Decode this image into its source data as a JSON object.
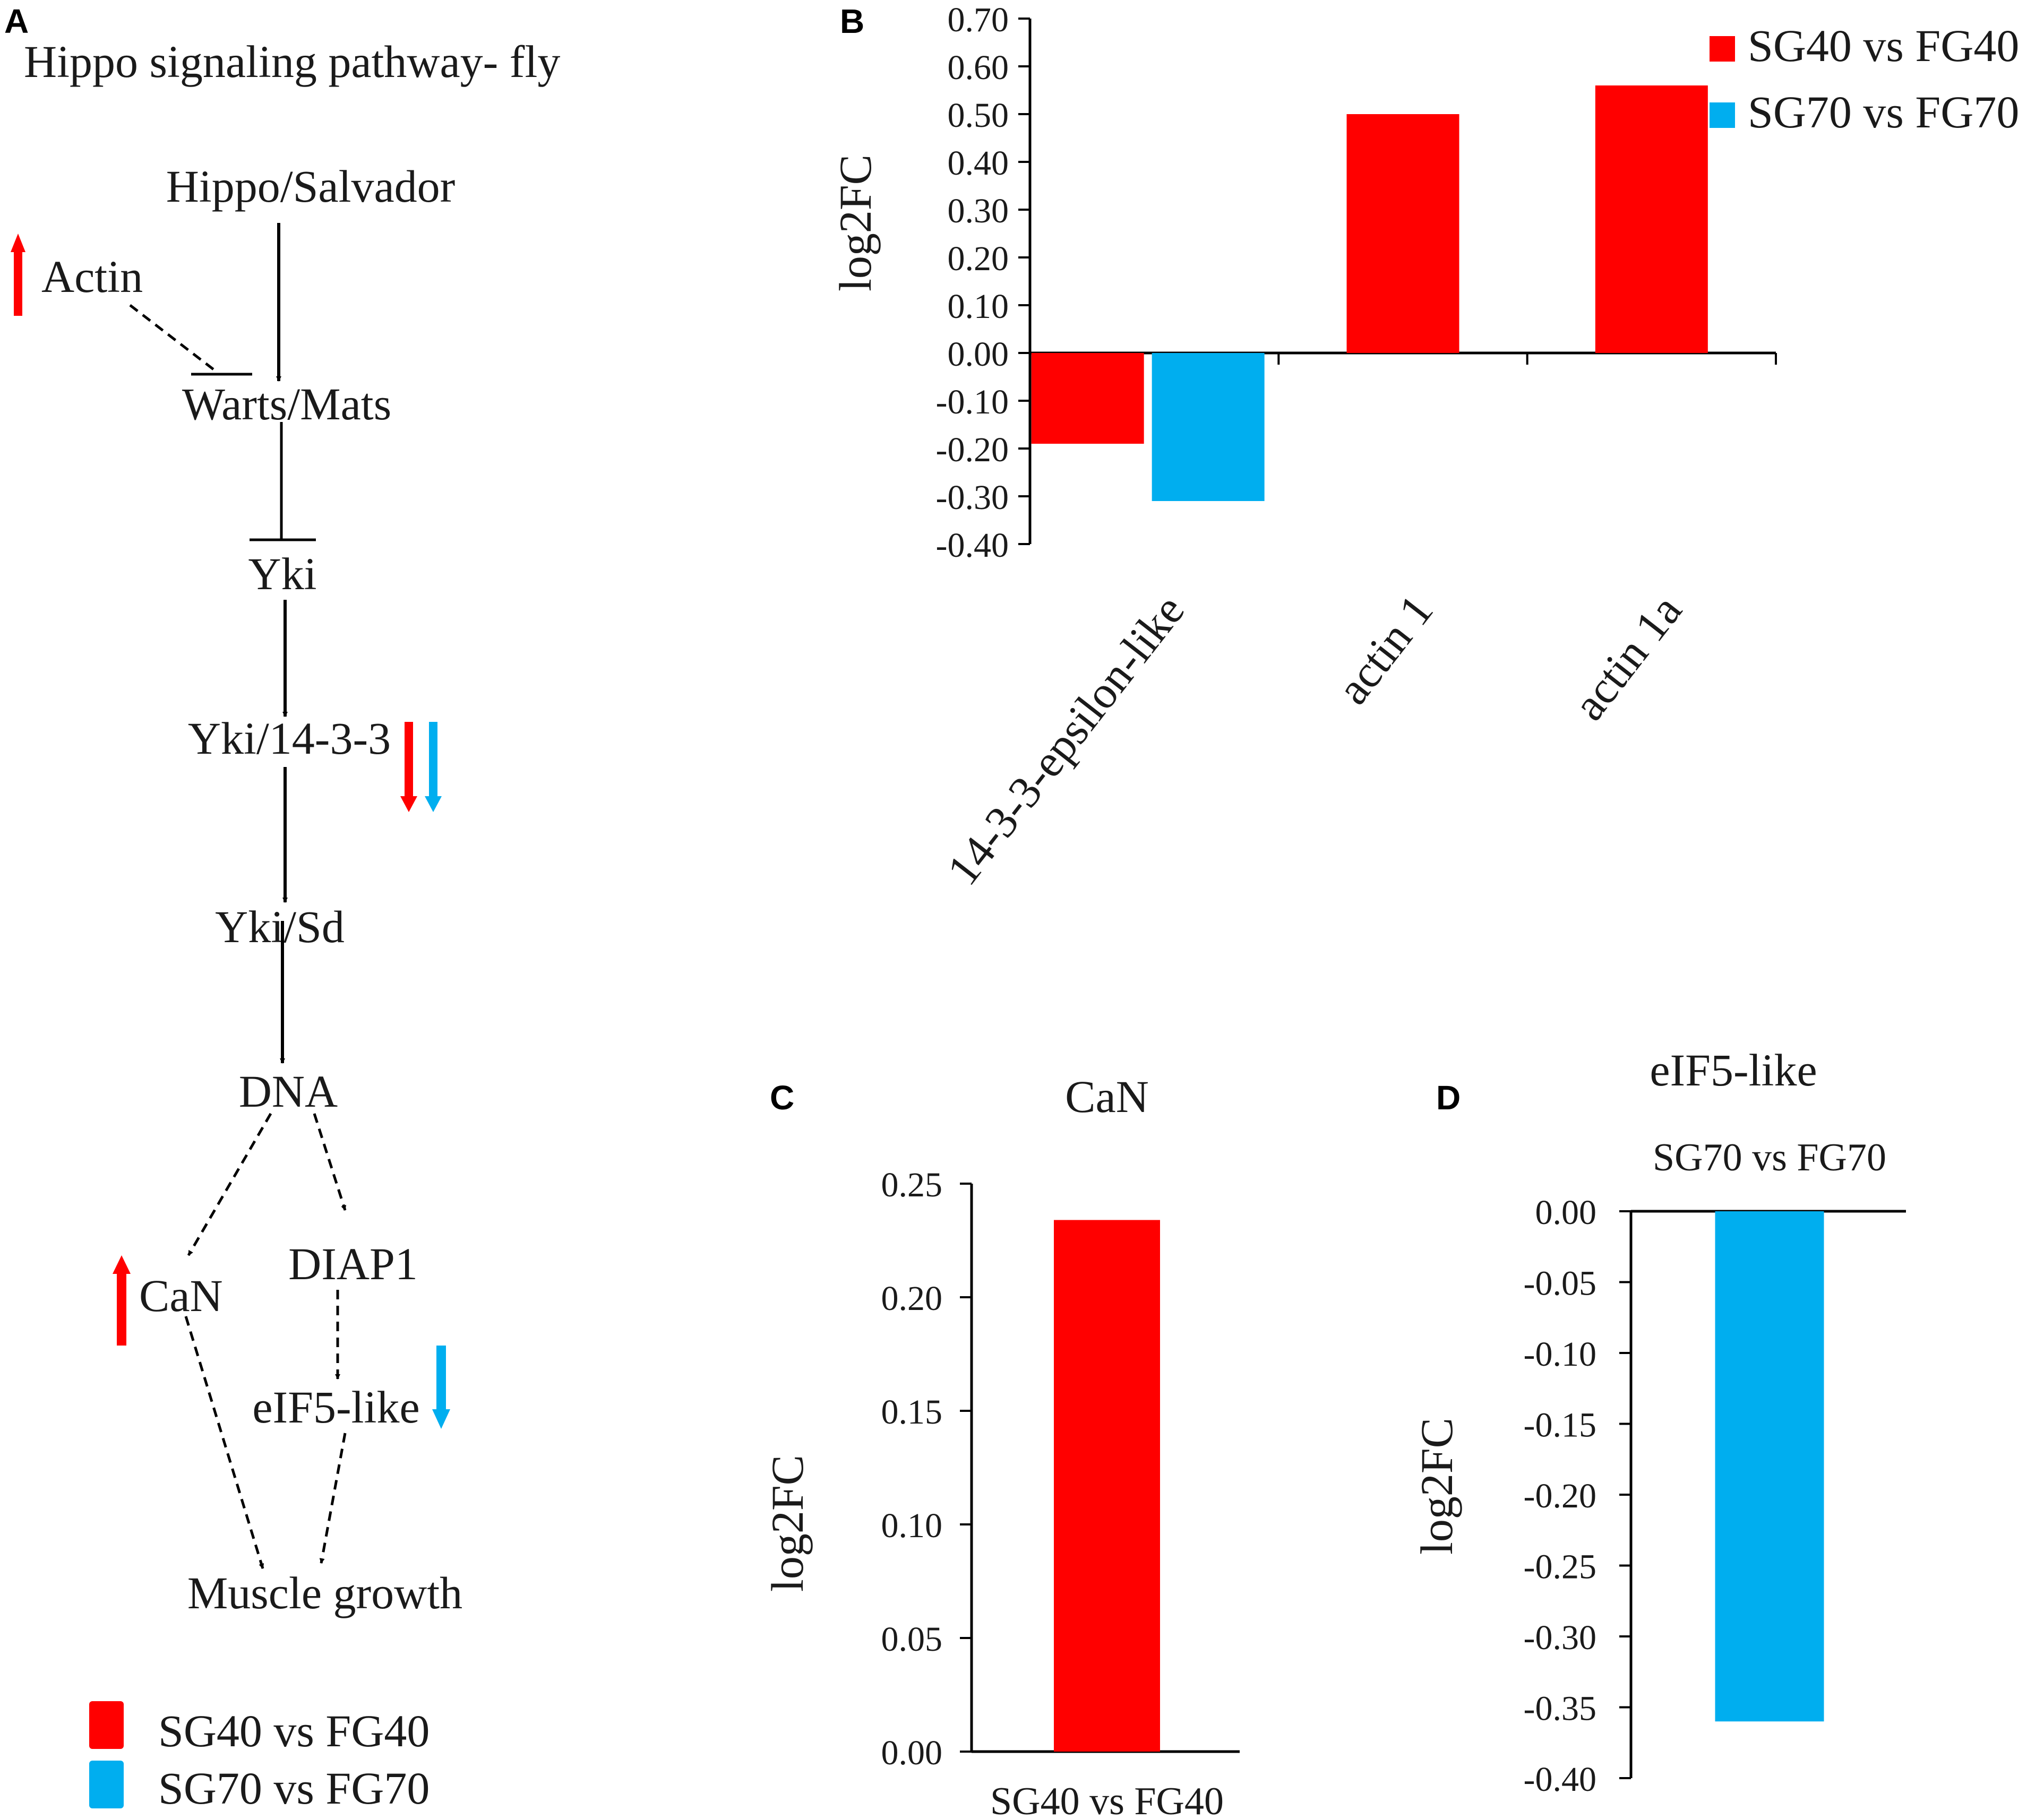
{
  "colors": {
    "sg40": "#ff0000",
    "sg70": "#00aeef",
    "ink": "#000000"
  },
  "panel_letters": {
    "a": "A",
    "b": "B",
    "c": "C",
    "d": "D"
  },
  "pathway": {
    "title": "Hippo signaling pathway- fly",
    "nodes": {
      "hippo": "Hippo/Salvador",
      "actin": "Actin",
      "warts": "Warts/Mats",
      "yki": "Yki",
      "yki1433": "Yki/14-3-3",
      "ykisd": "Yki/Sd",
      "dna": "DNA",
      "can": "CaN",
      "diap1": "DIAP1",
      "eif5": "eIF5-like",
      "muscle": "Muscle growth"
    },
    "regulation": {
      "actin": "up-sg40",
      "yki1433": "down-sg40-sg70",
      "can": "up-sg40",
      "eif5": "down-sg70"
    },
    "legend": [
      {
        "label": "SG40 vs FG40",
        "color": "#ff0000"
      },
      {
        "label": "SG70 vs FG70",
        "color": "#00aeef"
      }
    ]
  },
  "chart_data": [
    {
      "panel": "B",
      "type": "bar",
      "title": "",
      "ylabel": "log2FC",
      "categories": [
        "14-3-3-epsilon-like",
        "actin 1",
        "actin 1a"
      ],
      "series": [
        {
          "name": "SG40 vs FG40",
          "color": "#ff0000",
          "values": [
            -0.19,
            0.5,
            0.56
          ]
        },
        {
          "name": "SG70 vs FG70",
          "color": "#00aeef",
          "values": [
            -0.31,
            null,
            null
          ]
        }
      ],
      "ylim": [
        -0.4,
        0.7
      ],
      "yticks": [
        "0.70",
        "0.60",
        "0.50",
        "0.40",
        "0.30",
        "0.20",
        "0.10",
        "0.00",
        "-0.10",
        "-0.20",
        "-0.30",
        "-0.40"
      ],
      "legend": "top-right"
    },
    {
      "panel": "C",
      "type": "bar",
      "title": "CaN",
      "ylabel": "log2FC",
      "categories": [
        "SG40 vs FG40"
      ],
      "values": [
        0.234
      ],
      "color": "#ff0000",
      "ylim": [
        0,
        0.25
      ],
      "yticks": [
        "0.25",
        "0.20",
        "0.15",
        "0.10",
        "0.05",
        "0.00"
      ]
    },
    {
      "panel": "D",
      "type": "bar",
      "title": "eIF5-like",
      "ylabel": "log2FC",
      "categories": [
        "SG70 vs FG70"
      ],
      "values": [
        -0.36
      ],
      "color": "#00aeef",
      "ylim": [
        -0.4,
        0
      ],
      "yticks": [
        "0.00",
        "-0.05",
        "-0.10",
        "-0.15",
        "-0.20",
        "-0.25",
        "-0.30",
        "-0.35",
        "-0.40"
      ]
    }
  ]
}
